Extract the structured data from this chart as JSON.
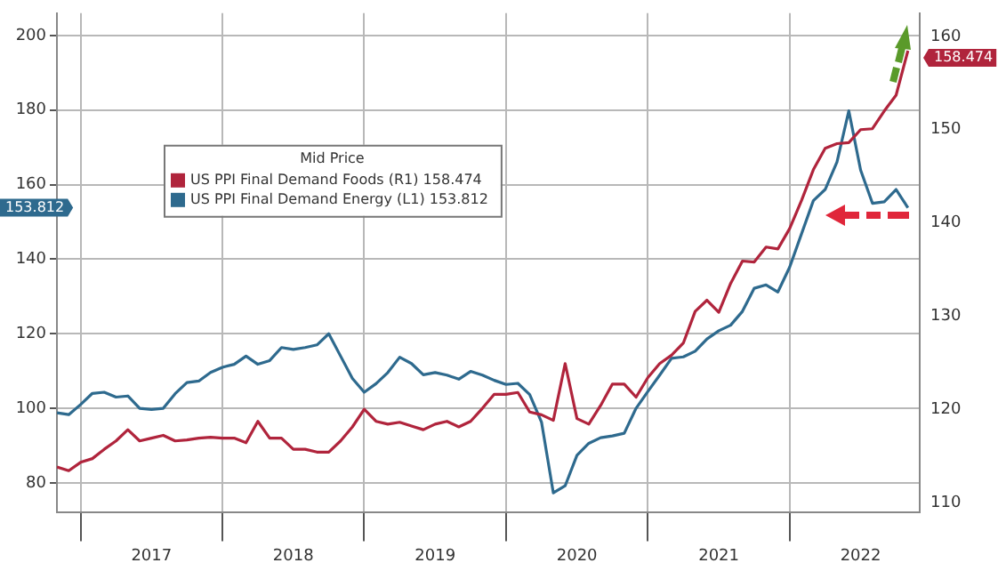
{
  "chart_data": {
    "type": "line",
    "legend_title": "Mid Price",
    "annotations": [
      "158.474",
      "153.812"
    ],
    "legend": "top left",
    "grid": true,
    "marker": "none",
    "line_style": "solid",
    "x": [
      "2016-11",
      "2016-12",
      "2017-01",
      "2017-02",
      "2017-03",
      "2017-04",
      "2017-05",
      "2017-06",
      "2017-07",
      "2017-08",
      "2017-09",
      "2017-10",
      "2017-11",
      "2017-12",
      "2018-01",
      "2018-02",
      "2018-03",
      "2018-04",
      "2018-05",
      "2018-06",
      "2018-07",
      "2018-08",
      "2018-09",
      "2018-10",
      "2018-11",
      "2018-12",
      "2019-01",
      "2019-02",
      "2019-03",
      "2019-04",
      "2019-05",
      "2019-06",
      "2019-07",
      "2019-08",
      "2019-09",
      "2019-10",
      "2019-11",
      "2019-12",
      "2020-01",
      "2020-02",
      "2020-03",
      "2020-04",
      "2020-05",
      "2020-06",
      "2020-07",
      "2020-08",
      "2020-09",
      "2020-10",
      "2020-11",
      "2020-12",
      "2021-01",
      "2021-02",
      "2021-03",
      "2021-04",
      "2021-05",
      "2021-06",
      "2021-07",
      "2021-08",
      "2021-09",
      "2021-10",
      "2021-11",
      "2021-12",
      "2022-01",
      "2022-02",
      "2022-03",
      "2022-04",
      "2022-05",
      "2022-06",
      "2022-07",
      "2022-08",
      "2022-09",
      "2022-10",
      "2022-11"
    ],
    "xlim": [
      "2016-11",
      "2022-12"
    ],
    "xticks": [
      {
        "value": "2017-01",
        "label": null
      },
      {
        "value": "2017-07",
        "label": "2017"
      },
      {
        "value": "2018-01",
        "label": null
      },
      {
        "value": "2018-07",
        "label": "2018"
      },
      {
        "value": "2019-01",
        "label": null
      },
      {
        "value": "2019-07",
        "label": "2019"
      },
      {
        "value": "2020-01",
        "label": null
      },
      {
        "value": "2020-07",
        "label": "2020"
      },
      {
        "value": "2021-01",
        "label": null
      },
      {
        "value": "2021-07",
        "label": "2021"
      },
      {
        "value": "2022-01",
        "label": null
      },
      {
        "value": "2022-07",
        "label": "2022"
      }
    ],
    "ylim": [
      72,
      206
    ],
    "yticks": [
      80,
      100,
      120,
      140,
      160,
      180,
      200
    ],
    "y2lim": [
      108.9,
      162.5
    ],
    "y2ticks": [
      110,
      120,
      130,
      140,
      150,
      160
    ],
    "series": [
      {
        "name": "US PPI Final Demand Foods (R1) 158.474",
        "color": "#b0243c",
        "axis": "y2",
        "values": [
          113.8,
          113.4,
          114.3,
          114.7,
          115.7,
          116.6,
          117.8,
          116.6,
          116.9,
          117.2,
          116.6,
          116.7,
          116.9,
          117,
          116.9,
          116.9,
          116.4,
          118.7,
          116.9,
          116.9,
          115.7,
          115.7,
          115.4,
          115.4,
          116.6,
          118.1,
          120,
          118.7,
          118.4,
          118.6,
          118.2,
          117.8,
          118.4,
          118.7,
          118.1,
          118.7,
          120.1,
          121.6,
          121.6,
          121.8,
          119.7,
          119.4,
          118.8,
          124.9,
          119,
          118.4,
          120.4,
          122.7,
          122.7,
          121.3,
          123.4,
          124.9,
          125.8,
          127.1,
          130.5,
          131.7,
          130.4,
          133.5,
          135.9,
          135.8,
          137.4,
          137.2,
          139.4,
          142.4,
          145.7,
          148,
          148.5,
          148.6,
          150,
          150.1,
          152,
          153.7,
          158.474
        ]
      },
      {
        "name": "US PPI Final Demand Energy (L1) 153.812",
        "color": "#2e6a8e",
        "axis": "y",
        "values": [
          98.8,
          98.3,
          101,
          104,
          104.3,
          103,
          103.3,
          100,
          99.7,
          100,
          103.9,
          106.9,
          107.3,
          109.6,
          111,
          111.8,
          114,
          111.8,
          112.8,
          116.3,
          115.8,
          116.3,
          117,
          120,
          114,
          108,
          104.3,
          106.6,
          109.6,
          113.7,
          112,
          109,
          109.6,
          108.9,
          107.8,
          109.9,
          108.9,
          107.5,
          106.4,
          106.7,
          103.7,
          96.3,
          77.3,
          79.2,
          87.4,
          90.6,
          92.1,
          92.6,
          93.3,
          100,
          104.5,
          108.9,
          113.4,
          113.8,
          115.3,
          118.6,
          120.8,
          122.3,
          126,
          132.2,
          133.1,
          131.2,
          137.9,
          146.8,
          155.7,
          158.7,
          166.1,
          179.8,
          163.9,
          155,
          155.4,
          158.7,
          153.812
        ]
      }
    ]
  }
}
